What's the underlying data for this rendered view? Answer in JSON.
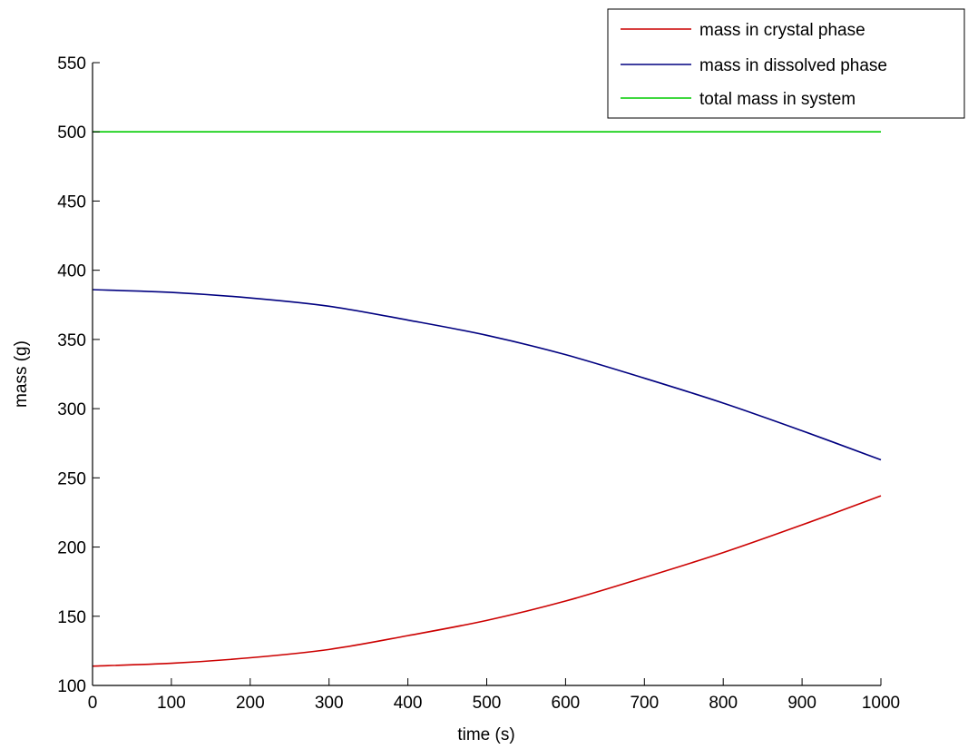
{
  "chart_data": {
    "type": "line",
    "title": "",
    "xlabel": "time (s)",
    "ylabel": "mass (g)",
    "xlim": [
      0,
      1000
    ],
    "ylim": [
      100,
      550
    ],
    "xticks": [
      0,
      100,
      200,
      300,
      400,
      500,
      600,
      700,
      800,
      900,
      1000
    ],
    "yticks": [
      100,
      150,
      200,
      250,
      300,
      350,
      400,
      450,
      500,
      550
    ],
    "grid": false,
    "legend_position": "top-right",
    "x": [
      0,
      100,
      200,
      300,
      400,
      500,
      600,
      700,
      800,
      900,
      1000
    ],
    "series": [
      {
        "name": "mass in crystal phase",
        "color": "#cc0000",
        "values": [
          114,
          116,
          120,
          126,
          136,
          147,
          161,
          178,
          196,
          216,
          237
        ]
      },
      {
        "name": "mass in dissolved phase",
        "color": "#000080",
        "values": [
          386,
          384,
          380,
          374,
          364,
          353,
          339,
          322,
          304,
          284,
          263
        ]
      },
      {
        "name": "total mass in system",
        "color": "#00cc00",
        "values": [
          500,
          500,
          500,
          500,
          500,
          500,
          500,
          500,
          500,
          500,
          500
        ]
      }
    ]
  }
}
